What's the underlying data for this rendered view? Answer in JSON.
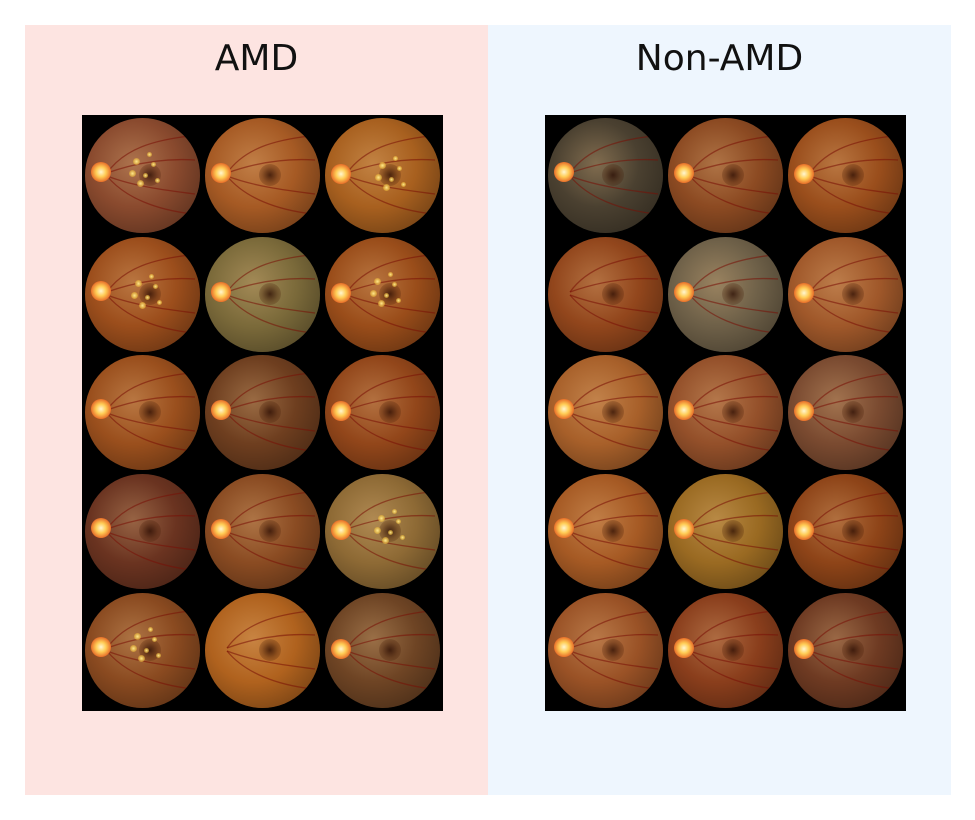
{
  "panels": [
    {
      "id": "amd",
      "title": "AMD",
      "background": "#fde4e1",
      "images": [
        {
          "tone": "#8a4a2e",
          "disc": "left",
          "lesion": true
        },
        {
          "tone": "#a65a24",
          "disc": "left",
          "lesion": false
        },
        {
          "tone": "#a8601f",
          "disc": "left",
          "lesion": true
        },
        {
          "tone": "#9c4e1c",
          "disc": "left",
          "lesion": true
        },
        {
          "tone": "#7b6a3a",
          "disc": "left",
          "lesion": false
        },
        {
          "tone": "#9a4d1a",
          "disc": "left",
          "lesion": true
        },
        {
          "tone": "#9a4f1d",
          "disc": "left",
          "lesion": false
        },
        {
          "tone": "#6e3e1f",
          "disc": "left",
          "lesion": false
        },
        {
          "tone": "#92461a",
          "disc": "left",
          "lesion": false
        },
        {
          "tone": "#6a3320",
          "disc": "left",
          "lesion": false
        },
        {
          "tone": "#8a4b22",
          "disc": "left",
          "lesion": false
        },
        {
          "tone": "#8e6a35",
          "disc": "left",
          "lesion": true
        },
        {
          "tone": "#8a4a20",
          "disc": "left",
          "lesion": true
        },
        {
          "tone": "#b0621e",
          "disc": "none",
          "lesion": false
        },
        {
          "tone": "#6e4424",
          "disc": "left",
          "lesion": false
        }
      ]
    },
    {
      "id": "non-amd",
      "title": "Non-AMD",
      "background": "#eef6fe",
      "images": [
        {
          "tone": "#4a4030",
          "disc": "left",
          "lesion": false
        },
        {
          "tone": "#8c4a22",
          "disc": "left",
          "lesion": false
        },
        {
          "tone": "#9a4e1c",
          "disc": "left",
          "lesion": false
        },
        {
          "tone": "#92461c",
          "disc": "none",
          "lesion": false
        },
        {
          "tone": "#6e6048",
          "disc": "left",
          "lesion": false
        },
        {
          "tone": "#a0582a",
          "disc": "left",
          "lesion": false
        },
        {
          "tone": "#a8602a",
          "disc": "left",
          "lesion": false
        },
        {
          "tone": "#94502a",
          "disc": "left",
          "lesion": false
        },
        {
          "tone": "#7a4a30",
          "disc": "left",
          "lesion": false
        },
        {
          "tone": "#a65a24",
          "disc": "left",
          "lesion": false
        },
        {
          "tone": "#9a6a22",
          "disc": "left",
          "lesion": false
        },
        {
          "tone": "#8e4418",
          "disc": "left",
          "lesion": false
        },
        {
          "tone": "#9a5226",
          "disc": "left",
          "lesion": false
        },
        {
          "tone": "#8a3e1c",
          "disc": "left",
          "lesion": false
        },
        {
          "tone": "#6e3a22",
          "disc": "left",
          "lesion": false
        }
      ]
    }
  ]
}
